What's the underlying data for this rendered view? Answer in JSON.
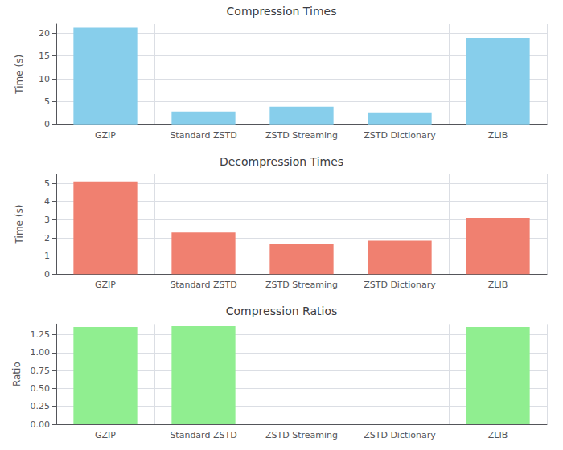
{
  "chart_data": [
    {
      "type": "bar",
      "title": "Compression Times",
      "ylabel": "Time (s)",
      "categories": [
        "GZIP",
        "Standard ZSTD",
        "ZSTD Streaming",
        "ZSTD Dictionary",
        "ZLIB"
      ],
      "values": [
        21.2,
        2.8,
        3.85,
        2.65,
        19.0
      ],
      "color": "#87CEEB",
      "ylim": [
        0,
        22
      ],
      "yticks": [
        0,
        5,
        10,
        15,
        20
      ],
      "grid": true
    },
    {
      "type": "bar",
      "title": "Decompression Times",
      "ylabel": "Time (s)",
      "categories": [
        "GZIP",
        "Standard ZSTD",
        "ZSTD Streaming",
        "ZSTD Dictionary",
        "ZLIB"
      ],
      "values": [
        5.1,
        2.3,
        1.65,
        1.85,
        3.1
      ],
      "color": "#F08070",
      "ylim": [
        0,
        5.5
      ],
      "yticks": [
        0,
        1,
        2,
        3,
        4,
        5
      ],
      "grid": true
    },
    {
      "type": "bar",
      "title": "Compression Ratios",
      "ylabel": "Ratio",
      "categories": [
        "GZIP",
        "Standard ZSTD",
        "ZSTD Streaming",
        "ZSTD Dictionary",
        "ZLIB"
      ],
      "values": [
        1.36,
        1.37,
        0.0,
        0.0,
        1.36
      ],
      "color": "#90EE90",
      "ylim": [
        0,
        1.4
      ],
      "yticks": [
        {
          "value": 0.0,
          "label": "0.00"
        },
        {
          "value": 0.25,
          "label": "0.25"
        },
        {
          "value": 0.5,
          "label": "0.50"
        },
        {
          "value": 0.75,
          "label": "0.75"
        },
        {
          "value": 1.0,
          "label": "1.00"
        },
        {
          "value": 1.25,
          "label": "1.25"
        }
      ],
      "grid": true
    }
  ]
}
